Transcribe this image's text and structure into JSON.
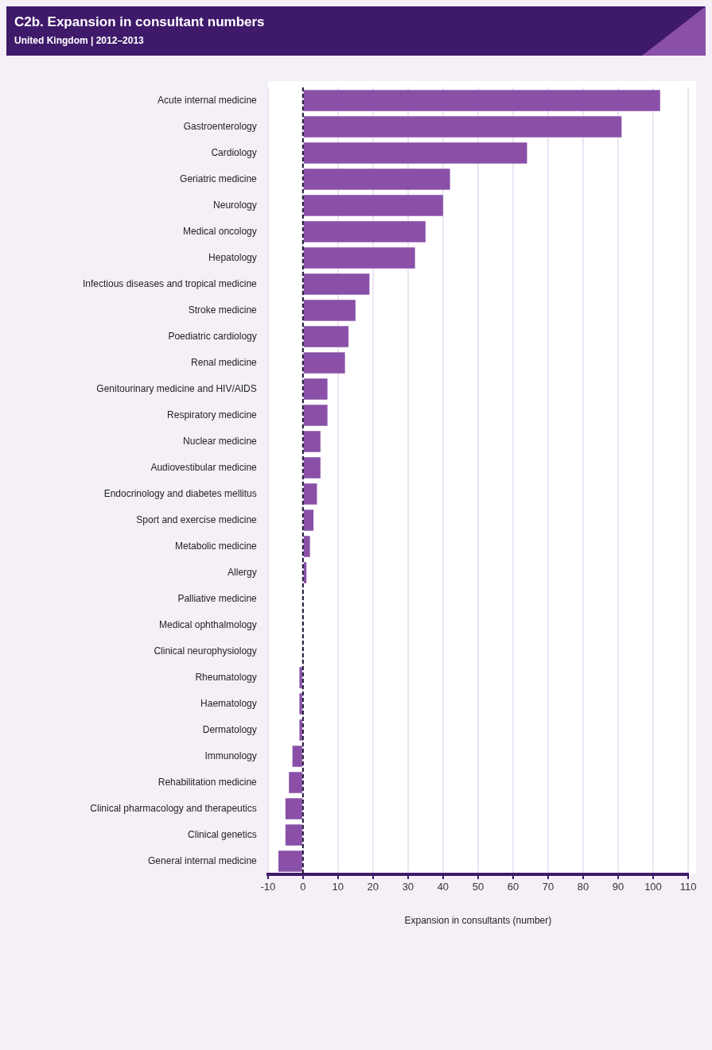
{
  "chart_data": {
    "type": "bar",
    "orientation": "horizontal",
    "title": "C2b. Expansion in consultant numbers",
    "subtitle": "United Kingdom | 2012–2013",
    "xlabel": "Expansion in consultants (number)",
    "categories": [
      "Acute internal medicine",
      "Gastroenterology",
      "Cardiology",
      "Geriatric medicine",
      "Neurology",
      "Medical oncology",
      "Hepatology",
      "Infectious diseases and tropical medicine",
      "Stroke medicine",
      "Poediatric cardiology",
      "Renal medicine",
      "Genitourinary medicine and HIV/AIDS",
      "Respiratory medicine",
      "Nuclear medicine",
      "Audiovestibular medicine",
      "Endocrinology and diabetes mellitus",
      "Sport and exercise medicine",
      "Metabolic medicine",
      "Allergy",
      "Palliative medicine",
      "Medical ophthalmology",
      "Clinical neurophysiology",
      "Rheumatology",
      "Haematology",
      "Dermatology",
      "Immunology",
      "Rehabilitation medicine",
      "Clinical pharmacology and therapeutics",
      "Clinical genetics",
      "General internal medicine"
    ],
    "values": [
      102,
      91,
      64,
      42,
      40,
      35,
      32,
      19,
      15,
      13,
      12,
      7,
      7,
      5,
      5,
      4,
      3,
      2,
      1,
      0,
      0,
      0,
      -1,
      -1,
      -1,
      -3,
      -4,
      -5,
      -5,
      -7
    ],
    "color": "#8a50a8",
    "xlim": [
      -10,
      110
    ],
    "xticks": [
      -10,
      0,
      10,
      20,
      30,
      40,
      50,
      60,
      70,
      80,
      90,
      100,
      110
    ],
    "grid": "x",
    "legend": false,
    "ref_lines": [
      {
        "axis": "x",
        "value": 0,
        "color": "#1a1030",
        "line_style": "dashed"
      }
    ]
  }
}
